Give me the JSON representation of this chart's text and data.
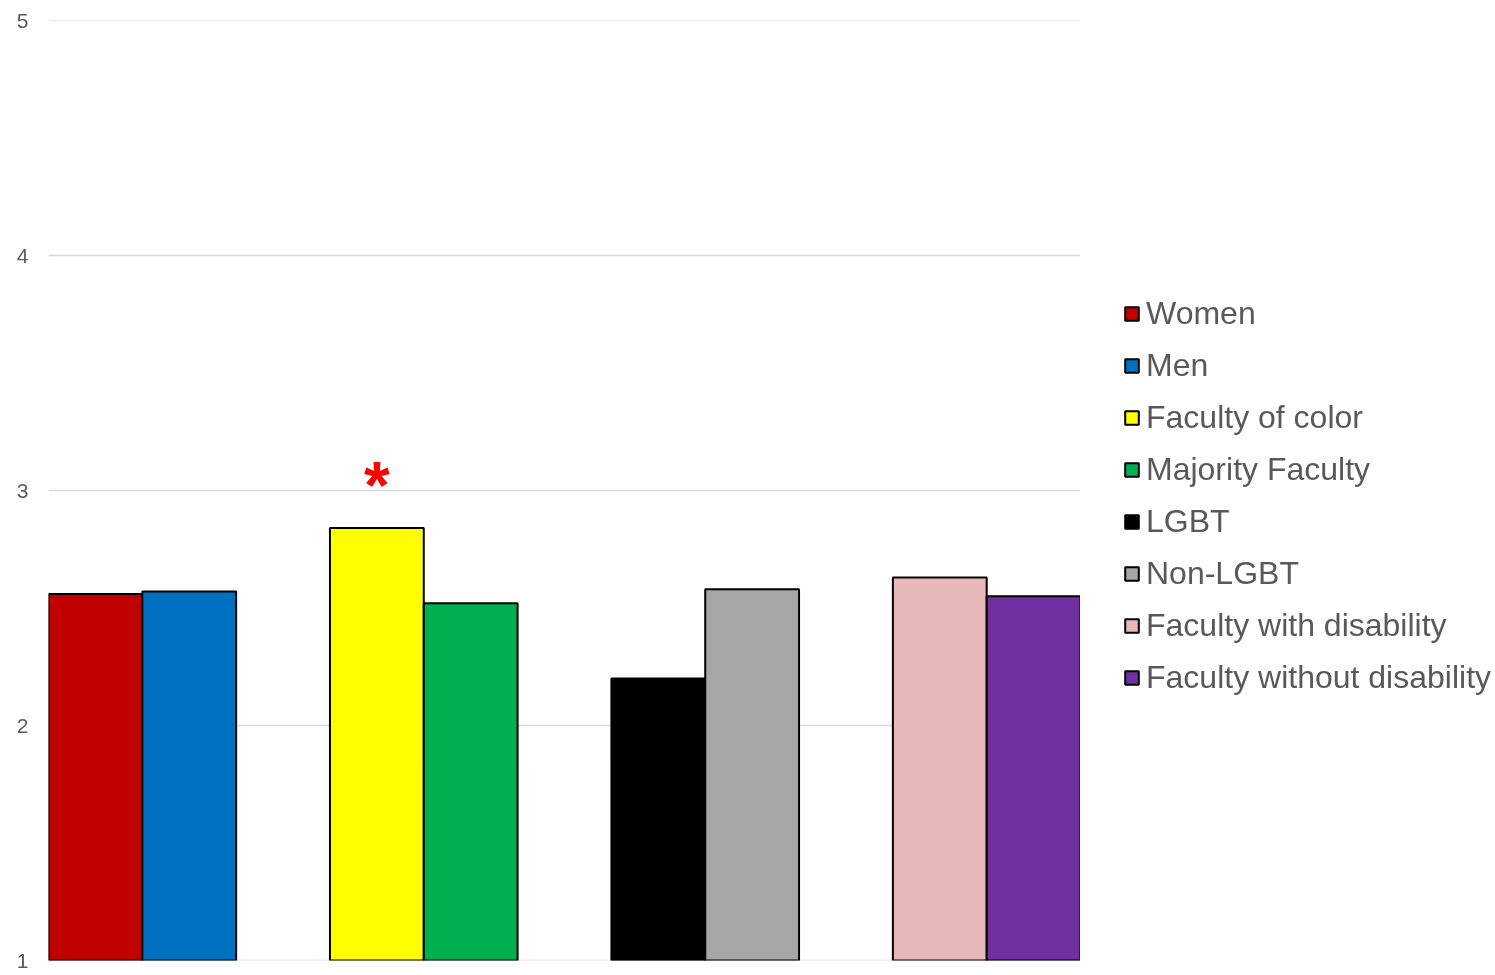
{
  "chart_data": {
    "type": "bar",
    "categories": [
      null,
      null,
      null,
      null,
      null,
      null,
      null,
      null,
      null,
      null,
      null
    ],
    "series": [
      {
        "name": "Women",
        "color": "#c00000",
        "values": [
          2.56,
          null,
          null,
          null,
          null,
          null,
          null,
          null,
          null,
          null,
          null
        ]
      },
      {
        "name": "Men",
        "color": "#0070c0",
        "values": [
          null,
          2.57,
          null,
          null,
          null,
          null,
          null,
          null,
          null,
          null,
          null
        ]
      },
      {
        "name": "Faculty of color",
        "color": "#ffff00",
        "values": [
          null,
          null,
          null,
          2.84,
          null,
          null,
          null,
          null,
          null,
          null,
          null
        ]
      },
      {
        "name": "Majority Faculty",
        "color": "#00b050",
        "values": [
          null,
          null,
          null,
          null,
          2.52,
          null,
          null,
          null,
          null,
          null,
          null
        ]
      },
      {
        "name": "LGBT",
        "color": "#000000",
        "values": [
          null,
          null,
          null,
          null,
          null,
          null,
          2.2,
          null,
          null,
          null,
          null
        ]
      },
      {
        "name": "Non-LGBT",
        "color": "#a6a6a6",
        "values": [
          null,
          null,
          null,
          null,
          null,
          null,
          null,
          2.58,
          null,
          null,
          null
        ]
      },
      {
        "name": "Faculty with disability",
        "color": "#e6b8b7",
        "values": [
          null,
          null,
          null,
          null,
          null,
          null,
          null,
          null,
          null,
          2.63,
          null
        ]
      },
      {
        "name": "Faculty without disability",
        "color": "#7030a0",
        "values": [
          null,
          null,
          null,
          null,
          null,
          null,
          null,
          null,
          null,
          null,
          2.55
        ]
      }
    ],
    "ylim": [
      1,
      5
    ],
    "yticks": [
      1,
      2,
      3,
      4,
      5
    ],
    "grid": "y",
    "legend": "right",
    "annotations": [
      "*"
    ]
  }
}
